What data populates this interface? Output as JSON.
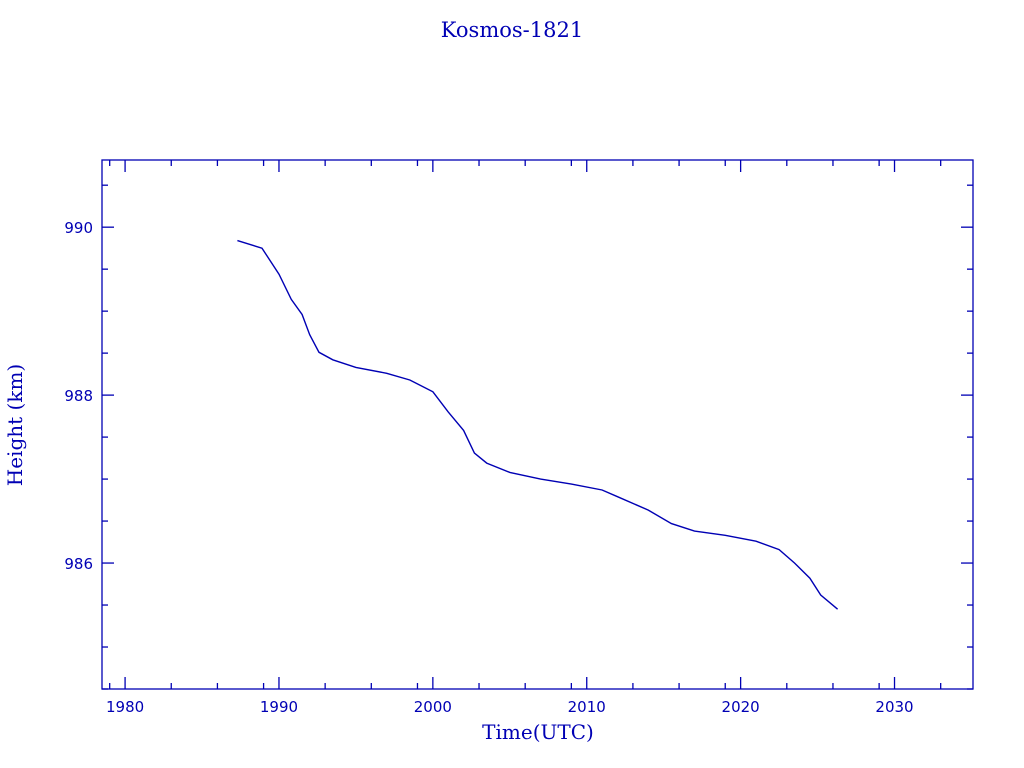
{
  "chart_data": {
    "type": "line",
    "title": "Kosmos-1821",
    "xlabel": "Time(UTC)",
    "ylabel": "Height (km)",
    "xlim": [
      1978.5,
      2035.1
    ],
    "ylim": [
      984.5,
      990.8
    ],
    "xticks": [
      1980,
      1990,
      2000,
      2010,
      2020,
      2030
    ],
    "xtick_labels": [
      "1980",
      "1990",
      "2000",
      "2010",
      "2020",
      "2030"
    ],
    "yticks": [
      986,
      988,
      990
    ],
    "ytick_labels": [
      "986",
      "988",
      "990"
    ],
    "grid": false,
    "color": "#0000b4",
    "series": [
      {
        "name": "Kosmos-1821",
        "x": [
          1987.3,
          1988.9,
          1990.0,
          1990.8,
          1991.5,
          1992.0,
          1992.6,
          1993.5,
          1995.0,
          1997.0,
          1998.5,
          2000.0,
          2001.0,
          2002.0,
          2002.7,
          2003.5,
          2005.0,
          2007.0,
          2009.0,
          2011.0,
          2012.0,
          2014.0,
          2015.5,
          2017.0,
          2019.0,
          2021.0,
          2022.5,
          2023.5,
          2024.5,
          2025.2,
          2026.3
        ],
        "y": [
          989.84,
          989.75,
          989.44,
          989.14,
          988.96,
          988.72,
          988.51,
          988.42,
          988.33,
          988.26,
          988.18,
          988.04,
          987.8,
          987.58,
          987.31,
          987.19,
          987.08,
          987.0,
          986.94,
          986.87,
          986.79,
          986.63,
          986.47,
          986.38,
          986.33,
          986.26,
          986.16,
          986.0,
          985.82,
          985.62,
          985.45
        ]
      }
    ]
  }
}
